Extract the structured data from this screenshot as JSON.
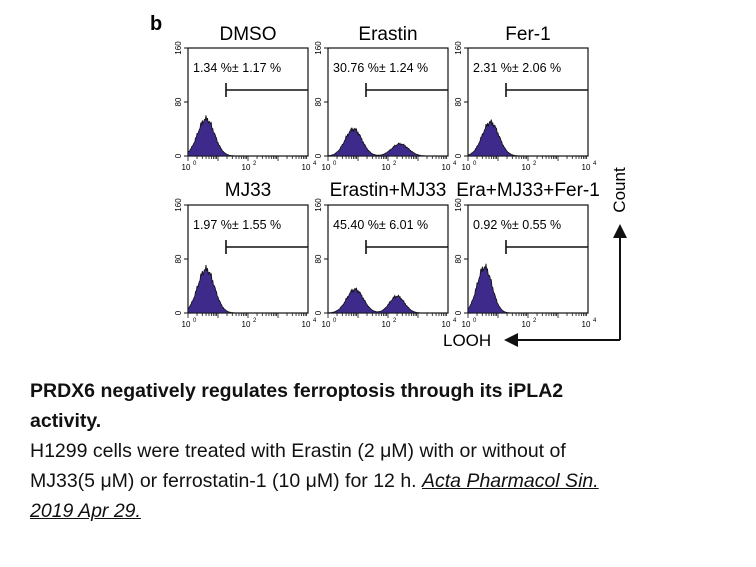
{
  "figure": {
    "panel_letter": "b",
    "y_axis_label": "Count",
    "x_axis_label": "LOOH"
  },
  "chart_data": [
    {
      "type": "area",
      "title": "DMSO",
      "annotation": "1.34 %± 1.17 %",
      "y_ticks": [
        "0",
        "80",
        "160"
      ],
      "x_ticks": [
        "10",
        "10",
        "10"
      ],
      "x_log": true,
      "xlim": [
        1,
        10000
      ],
      "ylim": [
        0,
        160
      ],
      "peaks": [
        {
          "center_log": 0.6,
          "height": 55,
          "width": 0.28
        }
      ]
    },
    {
      "type": "area",
      "title": "Erastin",
      "annotation": "30.76 %± 1.24 %",
      "y_ticks": [
        "0",
        "80",
        "160"
      ],
      "x_ticks": [
        "10",
        "10",
        "10"
      ],
      "x_log": true,
      "xlim": [
        1,
        10000
      ],
      "ylim": [
        0,
        160
      ],
      "peaks": [
        {
          "center_log": 0.85,
          "height": 40,
          "width": 0.28
        },
        {
          "center_log": 2.4,
          "height": 18,
          "width": 0.28
        }
      ]
    },
    {
      "type": "area",
      "title": "Fer-1",
      "annotation": "2.31 %± 2.06 %",
      "y_ticks": [
        "0",
        "80",
        "160"
      ],
      "x_ticks": [
        "10",
        "10",
        "10"
      ],
      "x_log": true,
      "xlim": [
        1,
        10000
      ],
      "ylim": [
        0,
        160
      ],
      "peaks": [
        {
          "center_log": 0.75,
          "height": 50,
          "width": 0.28
        }
      ]
    },
    {
      "type": "area",
      "title": "MJ33",
      "annotation": "1.97 %± 1.55 %",
      "y_ticks": [
        "0",
        "80",
        "160"
      ],
      "x_ticks": [
        "10",
        "10",
        "10"
      ],
      "x_log": true,
      "xlim": [
        1,
        10000
      ],
      "ylim": [
        0,
        160
      ],
      "peaks": [
        {
          "center_log": 0.6,
          "height": 65,
          "width": 0.28
        }
      ]
    },
    {
      "type": "area",
      "title": "Erastin+MJ33",
      "annotation": "45.40 %± 6.01 %",
      "y_ticks": [
        "0",
        "80",
        "160"
      ],
      "x_ticks": [
        "10",
        "10",
        "10"
      ],
      "x_log": true,
      "xlim": [
        1,
        10000
      ],
      "ylim": [
        0,
        160
      ],
      "peaks": [
        {
          "center_log": 0.9,
          "height": 35,
          "width": 0.28
        },
        {
          "center_log": 2.3,
          "height": 25,
          "width": 0.25
        }
      ]
    },
    {
      "type": "area",
      "title": "Era+MJ33+Fer-1",
      "annotation": "0.92 %± 0.55 %",
      "y_ticks": [
        "0",
        "80",
        "160"
      ],
      "x_ticks": [
        "10",
        "10",
        "10"
      ],
      "x_log": true,
      "xlim": [
        1,
        10000
      ],
      "ylim": [
        0,
        160
      ],
      "peaks": [
        {
          "center_log": 0.55,
          "height": 68,
          "width": 0.25
        }
      ]
    }
  ],
  "caption": {
    "title_line1": "PRDX6 negatively regulates ferroptosis through its iPLA2",
    "title_line2": "activity.",
    "body_line1": "H1299 cells were treated with Erastin (2 μM) with or without of",
    "body_line2_prefix": "MJ33(5 μM) or ferrostatin-1 (10 μM) for 12 h. ",
    "ref_line2": "Acta Pharmacol Sin.",
    "ref_line3": "2019 Apr 29."
  },
  "colors": {
    "fill": "#3d2a8a",
    "stroke": "#111111"
  }
}
